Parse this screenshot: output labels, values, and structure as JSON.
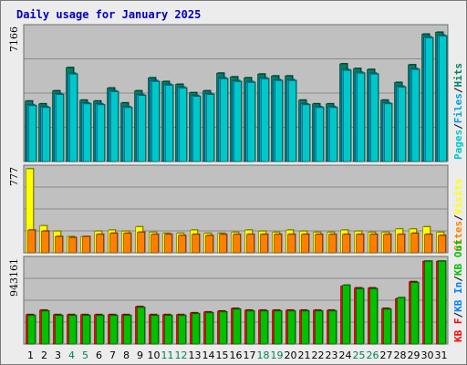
{
  "chart_data": {
    "title": "Daily usage for January 2025",
    "type": "bar",
    "categories": [
      "1",
      "2",
      "3",
      "4",
      "5",
      "6",
      "7",
      "8",
      "9",
      "10",
      "11",
      "12",
      "13",
      "14",
      "15",
      "16",
      "17",
      "18",
      "19",
      "20",
      "21",
      "22",
      "23",
      "24",
      "25",
      "26",
      "27",
      "28",
      "29",
      "30",
      "31"
    ],
    "weekend_days": [
      "4",
      "5",
      "11",
      "12",
      "18",
      "19",
      "25",
      "26"
    ],
    "background_color": "#c0c0c0",
    "panels": [
      {
        "id": "hits",
        "ymax_label": "7166",
        "ymax": 7166,
        "legend": [
          {
            "text": "Pages",
            "color": "#00c8c8"
          },
          {
            "text": "Files",
            "color": "#00a0e0"
          },
          {
            "text": "Hits",
            "color": "#008060"
          }
        ],
        "series": [
          {
            "name": "Hits",
            "color": "#008060",
            "values": [
              3250,
              3100,
              3800,
              5050,
              3300,
              3250,
              3950,
              3150,
              3800,
              4500,
              4300,
              4150,
              3700,
              3800,
              4750,
              4550,
              4500,
              4700,
              4600,
              4600,
              3300,
              3100,
              3100,
              5250,
              5000,
              4950,
              3300,
              4250,
              5200,
              6850,
              6950
            ]
          },
          {
            "name": "Files",
            "color": "#00a0e0",
            "values": [
              3050,
              2950,
              3650,
              4750,
              3150,
              3100,
              3800,
              2950,
              3600,
              4350,
              4150,
              4000,
              3550,
              3650,
              4500,
              4350,
              4300,
              4500,
              4400,
              4400,
              3100,
              2950,
              2950,
              4950,
              4800,
              4750,
              3150,
              4050,
              5000,
              6700,
              6800
            ]
          },
          {
            "name": "Pages",
            "color": "#00c8c8",
            "values": [
              3000,
              2900,
              3600,
              4700,
              3100,
              3050,
              3750,
              2900,
              3550,
              4300,
              4100,
              3950,
              3500,
              3600,
              4450,
              4300,
              4250,
              4450,
              4350,
              4350,
              3050,
              2900,
              2900,
              4900,
              4750,
              4700,
              3100,
              4000,
              4950,
              6650,
              6750
            ]
          }
        ]
      },
      {
        "id": "visits",
        "ymax_label": "777",
        "ymax": 777,
        "legend": [
          {
            "text": "Sites",
            "color": "#ff8000"
          },
          {
            "text": "Visits",
            "color": "#ffff00"
          }
        ],
        "series": [
          {
            "name": "Visits",
            "color": "#ffff00",
            "values": [
              777,
              250,
              200,
              150,
              150,
              200,
              210,
              200,
              240,
              190,
              180,
              180,
              210,
              180,
              180,
              190,
              210,
              200,
              190,
              210,
              200,
              190,
              190,
              210,
              200,
              190,
              190,
              220,
              220,
              240,
              190
            ]
          },
          {
            "name": "Sites",
            "color": "#ff8000",
            "values": [
              210,
              200,
              150,
              140,
              150,
              170,
              180,
              180,
              190,
              170,
              170,
              160,
              170,
              160,
              170,
              170,
              170,
              170,
              170,
              170,
              170,
              170,
              170,
              170,
              170,
              170,
              170,
              170,
              180,
              170,
              160
            ]
          }
        ]
      },
      {
        "id": "kbytes",
        "ymax_label": "943161",
        "ymax": 943161,
        "legend": [
          {
            "text": "KB F",
            "color": "#ff0000"
          },
          {
            "text": "KB In",
            "color": "#0080ff"
          },
          {
            "text": "KB Out",
            "color": "#00c000"
          }
        ],
        "series": [
          {
            "name": "KB F",
            "color": "#ff0000",
            "values": [
              330000,
              380000,
              330000,
              330000,
              330000,
              330000,
              330000,
              330000,
              420000,
              330000,
              330000,
              330000,
              350000,
              360000,
              370000,
              400000,
              380000,
              380000,
              380000,
              380000,
              380000,
              380000,
              380000,
              650000,
              630000,
              630000,
              400000,
              510000,
              700000,
              930000,
              930000
            ]
          },
          {
            "name": "KB Out",
            "color": "#00c000",
            "values": [
              320000,
              370000,
              320000,
              320000,
              320000,
              320000,
              320000,
              320000,
              410000,
              320000,
              320000,
              320000,
              340000,
              350000,
              360000,
              390000,
              370000,
              370000,
              370000,
              370000,
              370000,
              370000,
              370000,
              660000,
              620000,
              620000,
              390000,
              520000,
              690000,
              930000,
              930000
            ]
          }
        ]
      }
    ]
  }
}
